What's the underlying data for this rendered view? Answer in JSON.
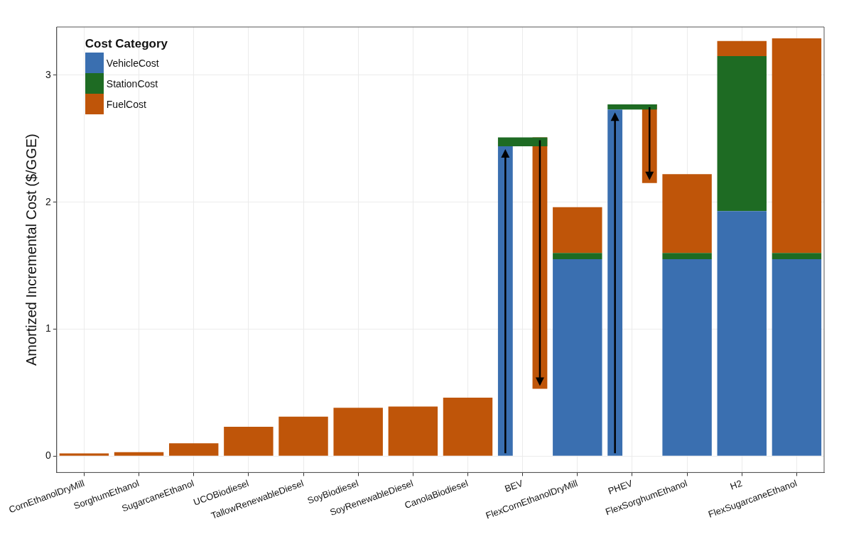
{
  "chart_data": {
    "type": "bar",
    "stacked": true,
    "ylabel": "Amortized Incremental Cost ($/GGE)",
    "legend_title": "Cost Category",
    "legend": "top left",
    "grid": true,
    "categories": [
      "CornEthanolDryMill",
      "SorghumEthanol",
      "SugarcaneEthanol",
      "UCOBiodiesel",
      "TallowRenewableDiesel",
      "SoyBiodiesel",
      "SoyRenewableDiesel",
      "CanolaBiodiesel",
      "BEV",
      "FlexCornEthanolDryMill",
      "PHEV",
      "FlexSorghumEthanol",
      "H2",
      "FlexSugarcaneEthanol"
    ],
    "series": [
      {
        "name": "VehicleCost",
        "color": "#3a6fb0",
        "values": [
          null,
          null,
          null,
          null,
          null,
          null,
          null,
          null,
          2.44,
          1.55,
          2.73,
          1.55,
          1.93,
          1.55
        ]
      },
      {
        "name": "StationCost",
        "color": "#1e6b23",
        "values": [
          null,
          null,
          null,
          null,
          null,
          null,
          null,
          null,
          0.07,
          0.05,
          0.04,
          0.05,
          1.22,
          0.05
        ]
      },
      {
        "name": "FuelCost",
        "color": "#bf5509",
        "values": [
          0.02,
          0.03,
          0.1,
          0.23,
          0.31,
          0.38,
          0.39,
          0.46,
          -1.98,
          0.36,
          -0.62,
          0.62,
          0.12,
          1.69
        ],
        "base": [
          null,
          null,
          null,
          null,
          null,
          null,
          null,
          null,
          2.51,
          null,
          2.77,
          null,
          null,
          null
        ]
      }
    ],
    "ylim": [
      -0.13,
      3.38
    ],
    "yticks": [
      0,
      1,
      2,
      3
    ]
  }
}
